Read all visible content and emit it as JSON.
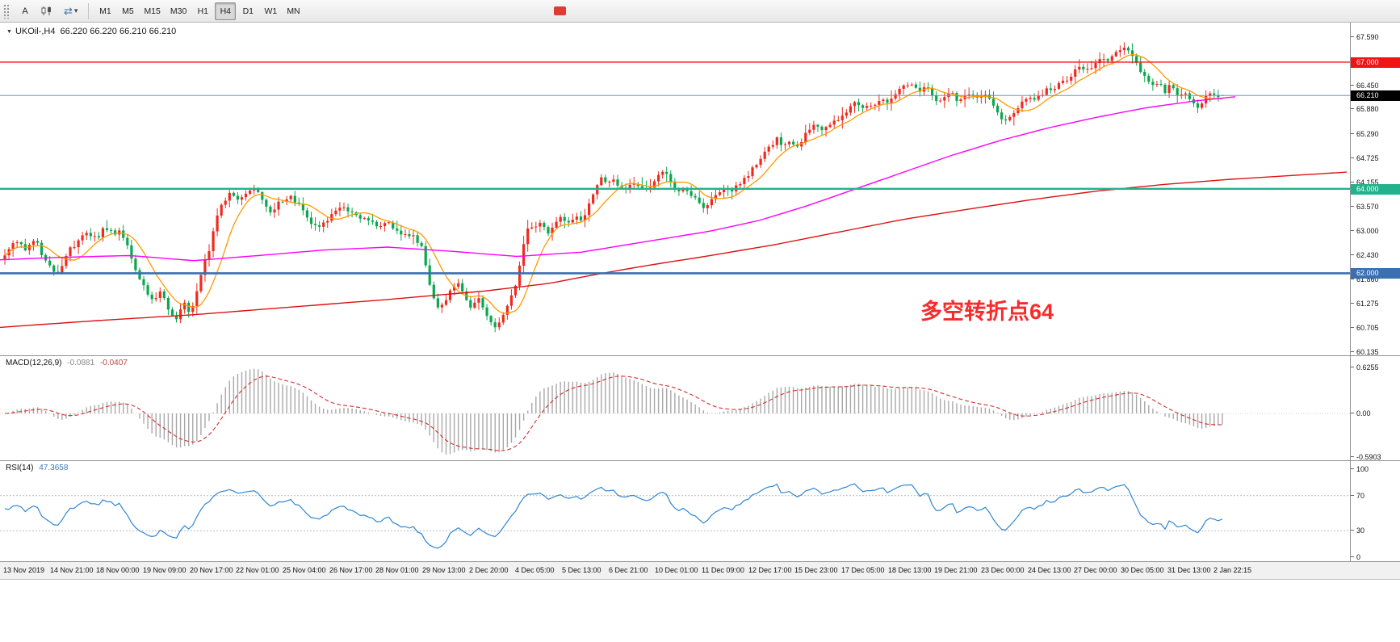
{
  "toolbar": {
    "a_label": "A",
    "cycle_glyph": "⇄",
    "caret_glyph": "▾",
    "timeframes": [
      "M1",
      "M5",
      "M15",
      "M30",
      "H1",
      "H4",
      "D1",
      "W1",
      "MN"
    ],
    "active_timeframe": "H4",
    "red_marker_color": "#e03a34"
  },
  "chart": {
    "symbol_title": "UKOil-,H4  66.220 66.220 66.210 66.210",
    "marker_glyph": "▼",
    "annotation_text": "多空转折点64",
    "annotation_color": "#fb2a2a"
  },
  "chart_data": {
    "type": "candlestick",
    "symbol": "UKOil-",
    "timeframe": "H4",
    "ohlc_current": {
      "open": 66.22,
      "high": 66.22,
      "low": 66.21,
      "close": 66.21
    },
    "colors": {
      "up": "#f02a1e",
      "down": "#0aa74e",
      "ma_fast": "#ff9900",
      "ma_mid": "#ff00ff",
      "ma_slow": "#dd1111"
    },
    "y_axis": {
      "max": 67.59,
      "min": 60.135,
      "ticks": [
        "67.590",
        "66.450",
        "65.880",
        "65.290",
        "64.725",
        "64.155",
        "63.570",
        "63.000",
        "62.430",
        "61.860",
        "61.275",
        "60.705",
        "60.135"
      ]
    },
    "levels": [
      {
        "price": 67.0,
        "label": "67.000",
        "color": "#f01515",
        "line_width": 1.4
      },
      {
        "price": 66.21,
        "label": "66.210",
        "color": "#000000",
        "line_color": "#6f95bb",
        "line_width": 1
      },
      {
        "price": 64.0,
        "label": "64.000",
        "color": "#22b28c",
        "line_width": 2.4
      },
      {
        "price": 62.0,
        "label": "62.000",
        "color": "#3a70b2",
        "line_width": 2.6
      }
    ],
    "price_path": [
      [
        0,
        62.2
      ],
      [
        12,
        62.45
      ],
      [
        24,
        62.8
      ],
      [
        36,
        62.6
      ],
      [
        48,
        62.85
      ],
      [
        58,
        62.4
      ],
      [
        68,
        62.1
      ],
      [
        78,
        61.98
      ],
      [
        88,
        62.5
      ],
      [
        100,
        62.7
      ],
      [
        112,
        62.95
      ],
      [
        124,
        62.8
      ],
      [
        136,
        63.1
      ],
      [
        148,
        62.9
      ],
      [
        155,
        63.0
      ],
      [
        165,
        62.55
      ],
      [
        175,
        62.0
      ],
      [
        185,
        61.6
      ],
      [
        195,
        61.35
      ],
      [
        205,
        61.6
      ],
      [
        215,
        61.1
      ],
      [
        225,
        60.92
      ],
      [
        233,
        61.3
      ],
      [
        240,
        61.05
      ],
      [
        248,
        61.5
      ],
      [
        256,
        62.2
      ],
      [
        264,
        62.5
      ],
      [
        272,
        63.3
      ],
      [
        282,
        63.7
      ],
      [
        292,
        63.9
      ],
      [
        302,
        63.7
      ],
      [
        312,
        63.95
      ],
      [
        322,
        64.05
      ],
      [
        330,
        63.7
      ],
      [
        340,
        63.45
      ],
      [
        352,
        63.7
      ],
      [
        364,
        63.8
      ],
      [
        376,
        63.6
      ],
      [
        388,
        63.2
      ],
      [
        398,
        63.05
      ],
      [
        408,
        63.2
      ],
      [
        418,
        63.4
      ],
      [
        428,
        63.55
      ],
      [
        438,
        63.5
      ],
      [
        448,
        63.35
      ],
      [
        460,
        63.25
      ],
      [
        472,
        63.1
      ],
      [
        484,
        63.2
      ],
      [
        496,
        63.0
      ],
      [
        508,
        62.95
      ],
      [
        518,
        62.85
      ],
      [
        528,
        62.6
      ],
      [
        534,
        62.0
      ],
      [
        540,
        61.5
      ],
      [
        548,
        61.15
      ],
      [
        556,
        61.35
      ],
      [
        564,
        61.6
      ],
      [
        572,
        61.75
      ],
      [
        580,
        61.5
      ],
      [
        588,
        61.2
      ],
      [
        596,
        61.45
      ],
      [
        604,
        61.15
      ],
      [
        612,
        60.85
      ],
      [
        620,
        60.7
      ],
      [
        628,
        61.0
      ],
      [
        636,
        61.3
      ],
      [
        644,
        61.7
      ],
      [
        650,
        62.3
      ],
      [
        656,
        62.9
      ],
      [
        662,
        63.15
      ],
      [
        668,
        63.05
      ],
      [
        676,
        63.2
      ],
      [
        684,
        63.0
      ],
      [
        692,
        63.15
      ],
      [
        700,
        63.3
      ],
      [
        708,
        63.2
      ],
      [
        716,
        63.35
      ],
      [
        724,
        63.25
      ],
      [
        732,
        63.5
      ],
      [
        740,
        63.95
      ],
      [
        748,
        64.3
      ],
      [
        756,
        64.1
      ],
      [
        764,
        64.2
      ],
      [
        772,
        64.05
      ],
      [
        780,
        63.95
      ],
      [
        788,
        64.15
      ],
      [
        796,
        64.1
      ],
      [
        804,
        63.95
      ],
      [
        812,
        64.1
      ],
      [
        820,
        64.3
      ],
      [
        828,
        64.45
      ],
      [
        836,
        64.1
      ],
      [
        844,
        63.95
      ],
      [
        852,
        64.05
      ],
      [
        860,
        63.9
      ],
      [
        868,
        63.75
      ],
      [
        876,
        63.55
      ],
      [
        884,
        63.65
      ],
      [
        892,
        63.9
      ],
      [
        900,
        64.0
      ],
      [
        908,
        63.95
      ],
      [
        916,
        64.05
      ],
      [
        924,
        64.15
      ],
      [
        932,
        64.3
      ],
      [
        940,
        64.55
      ],
      [
        948,
        64.7
      ],
      [
        956,
        64.95
      ],
      [
        964,
        65.1
      ],
      [
        968,
        65.2
      ],
      [
        976,
        65.0
      ],
      [
        984,
        65.15
      ],
      [
        992,
        64.95
      ],
      [
        1000,
        65.2
      ],
      [
        1008,
        65.4
      ],
      [
        1016,
        65.55
      ],
      [
        1024,
        65.35
      ],
      [
        1032,
        65.5
      ],
      [
        1040,
        65.6
      ],
      [
        1048,
        65.75
      ],
      [
        1056,
        65.9
      ],
      [
        1064,
        66.05
      ],
      [
        1072,
        65.9
      ],
      [
        1080,
        66.0
      ],
      [
        1088,
        65.95
      ],
      [
        1096,
        66.1
      ],
      [
        1104,
        66.05
      ],
      [
        1112,
        66.2
      ],
      [
        1120,
        66.35
      ],
      [
        1128,
        66.45
      ],
      [
        1136,
        66.5
      ],
      [
        1144,
        66.35
      ],
      [
        1152,
        66.45
      ],
      [
        1160,
        66.2
      ],
      [
        1168,
        66.05
      ],
      [
        1176,
        66.15
      ],
      [
        1184,
        66.25
      ],
      [
        1192,
        66.1
      ],
      [
        1200,
        66.2
      ],
      [
        1208,
        66.3
      ],
      [
        1216,
        66.15
      ],
      [
        1224,
        66.25
      ],
      [
        1232,
        66.05
      ],
      [
        1240,
        65.8
      ],
      [
        1248,
        65.6
      ],
      [
        1256,
        65.7
      ],
      [
        1264,
        65.9
      ],
      [
        1272,
        66.05
      ],
      [
        1280,
        66.15
      ],
      [
        1288,
        66.1
      ],
      [
        1296,
        66.25
      ],
      [
        1304,
        66.4
      ],
      [
        1312,
        66.35
      ],
      [
        1320,
        66.5
      ],
      [
        1328,
        66.6
      ],
      [
        1336,
        66.75
      ],
      [
        1344,
        66.9
      ],
      [
        1352,
        66.8
      ],
      [
        1360,
        66.95
      ],
      [
        1368,
        67.05
      ],
      [
        1376,
        67.0
      ],
      [
        1384,
        67.15
      ],
      [
        1392,
        67.3
      ],
      [
        1400,
        67.38
      ],
      [
        1408,
        67.1
      ],
      [
        1416,
        66.85
      ],
      [
        1424,
        66.6
      ],
      [
        1432,
        66.4
      ],
      [
        1440,
        66.55
      ],
      [
        1448,
        66.3
      ],
      [
        1456,
        66.45
      ],
      [
        1464,
        66.2
      ],
      [
        1472,
        66.35
      ],
      [
        1480,
        66.1
      ],
      [
        1488,
        65.95
      ],
      [
        1496,
        66.1
      ],
      [
        1504,
        66.25
      ],
      [
        1512,
        66.18
      ],
      [
        1518,
        66.21
      ]
    ],
    "ma_mid_path": [
      [
        0,
        62.32
      ],
      [
        80,
        62.38
      ],
      [
        160,
        62.42
      ],
      [
        240,
        62.3
      ],
      [
        320,
        62.42
      ],
      [
        400,
        62.55
      ],
      [
        480,
        62.62
      ],
      [
        560,
        62.52
      ],
      [
        640,
        62.4
      ],
      [
        720,
        62.5
      ],
      [
        800,
        62.75
      ],
      [
        880,
        63.0
      ],
      [
        940,
        63.25
      ],
      [
        1000,
        63.6
      ],
      [
        1060,
        64.0
      ],
      [
        1120,
        64.4
      ],
      [
        1180,
        64.8
      ],
      [
        1240,
        65.15
      ],
      [
        1300,
        65.45
      ],
      [
        1360,
        65.7
      ],
      [
        1420,
        65.92
      ],
      [
        1480,
        66.08
      ],
      [
        1530,
        66.18
      ]
    ],
    "ma_slow_path": [
      [
        0,
        60.72
      ],
      [
        120,
        60.88
      ],
      [
        240,
        61.02
      ],
      [
        360,
        61.2
      ],
      [
        480,
        61.38
      ],
      [
        600,
        61.58
      ],
      [
        680,
        61.76
      ],
      [
        740,
        61.98
      ],
      [
        800,
        62.18
      ],
      [
        880,
        62.42
      ],
      [
        960,
        62.68
      ],
      [
        1040,
        62.98
      ],
      [
        1120,
        63.28
      ],
      [
        1200,
        63.52
      ],
      [
        1280,
        63.75
      ],
      [
        1360,
        63.95
      ],
      [
        1440,
        64.1
      ],
      [
        1520,
        64.22
      ],
      [
        1672,
        64.4
      ]
    ],
    "macd": {
      "name": "MACD(12,26,9)",
      "value_main": "-0.0881",
      "value_signal": "-0.0407",
      "scale": [
        "0.6255",
        "0.00",
        "-0.5903"
      ],
      "histogram_color": "#a8a8a8",
      "signal_color": "#d03030"
    },
    "rsi": {
      "name": "RSI(14)",
      "value": "47.3658",
      "scale": [
        "100",
        "70",
        "30",
        "0"
      ],
      "levels": [
        70,
        30
      ],
      "color": "#2f86d2"
    },
    "time_labels": [
      "13 Nov 2019",
      "14 Nov 21:00",
      "18 Nov 00:00",
      "19 Nov 09:00",
      "20 Nov 17:00",
      "22 Nov 01:00",
      "25 Nov 04:00",
      "26 Nov 17:00",
      "28 Nov 01:00",
      "29 Nov 13:00",
      "2 Dec 20:00",
      "4 Dec 05:00",
      "5 Dec 13:00",
      "6 Dec 21:00",
      "10 Dec 01:00",
      "11 Dec 09:00",
      "12 Dec 17:00",
      "15 Dec 23:00",
      "17 Dec 05:00",
      "18 Dec 13:00",
      "19 Dec 21:00",
      "23 Dec 00:00",
      "24 Dec 13:00",
      "27 Dec 00:00",
      "30 Dec 05:00",
      "31 Dec 13:00",
      "2 Jan 22:15"
    ]
  }
}
